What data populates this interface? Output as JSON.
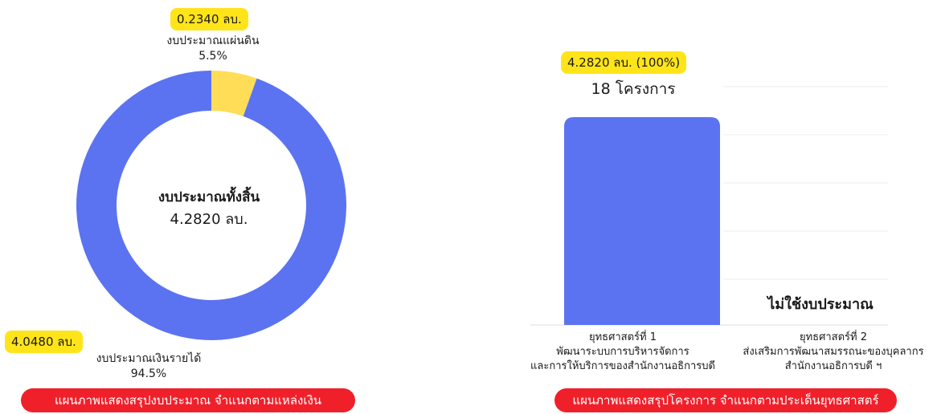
{
  "chart_data": [
    {
      "type": "pie",
      "variant": "donut",
      "categories": [
        "งบประมาณแผ่นดิน",
        "งบประมาณเงินรายได้"
      ],
      "values": [
        0.234,
        4.048
      ],
      "percent_labels": [
        "5.5%",
        "94.5%"
      ],
      "value_labels": [
        "0.2340 ลบ.",
        "4.0480 ลบ."
      ],
      "colors": [
        "#ffdd57",
        "#5b73f0"
      ],
      "center_title": "งบประมาณทั้งสิ้น",
      "center_value": "4.2820 ลบ.",
      "caption": "แผนภาพแสดงสรุปงบประมาณ จำแนกตามแหล่งเงิน"
    },
    {
      "type": "bar",
      "categories": [
        [
          "ยุทธศาสตร์ที่ 1",
          "พัฒนาระบบการบริหารจัดการ",
          "และการให้บริการของสำนักงานอธิการบดี"
        ],
        [
          "ยุทธศาสตร์ที่ 2",
          "ส่งเสริมการพัฒนาสมรรถนะของบุคลากร",
          "สำนักงานอธิการบดี ฯ"
        ]
      ],
      "values": [
        4.282,
        0
      ],
      "value_label": "4.2820 ลบ. (100%)",
      "count_label": "18 โครงการ",
      "zero_label": "ไม่ใช้งบประมาณ",
      "color": "#5b73f0",
      "grid": true,
      "caption": "แผนภาพแสดงสรุปโครงการ จำแนกตามประเด็นยุทธศาสตร์"
    }
  ]
}
